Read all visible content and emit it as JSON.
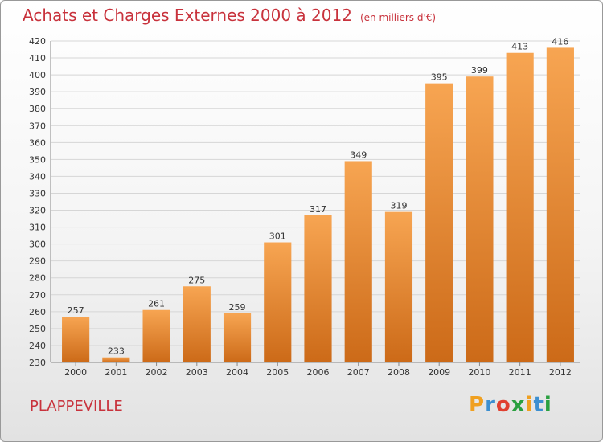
{
  "header": {
    "title": "Achats et Charges Externes 2000 à 2012",
    "subtitle": "(en milliers d'€)"
  },
  "footer": {
    "city": "PLAPPEVILLE",
    "logo": {
      "letters": [
        "P",
        "r",
        "o",
        "x",
        "i",
        "t",
        "i"
      ],
      "colors": [
        "#f0a020",
        "#3c8fd0",
        "#e04030",
        "#2aa040",
        "#f0a020",
        "#3c8fd0",
        "#2aa040"
      ]
    }
  },
  "chart_data": {
    "type": "bar",
    "title": "Achats et Charges Externes 2000 à 2012",
    "categories": [
      "2000",
      "2001",
      "2002",
      "2003",
      "2004",
      "2005",
      "2006",
      "2007",
      "2008",
      "2009",
      "2010",
      "2011",
      "2012"
    ],
    "values": [
      257,
      233,
      261,
      275,
      259,
      301,
      317,
      349,
      319,
      395,
      399,
      413,
      416
    ],
    "ylim": [
      230,
      420
    ],
    "ytick_step": 10,
    "grid": true,
    "bar_color_top": "#f7a552",
    "bar_color_bottom": "#cc6a18"
  }
}
